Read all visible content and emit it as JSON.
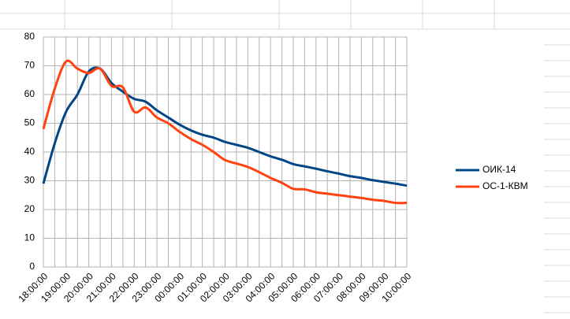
{
  "chart_data": {
    "type": "line",
    "categories": [
      "18:00:00",
      null,
      "19:00:00",
      null,
      "20:00:00",
      null,
      "21:00:00",
      null,
      "22:00:00",
      null,
      "23:00:00",
      null,
      "00:00:00",
      null,
      "01:00:00",
      null,
      "02:00:00",
      null,
      "03:00:00",
      null,
      "04:00:00",
      null,
      "05:00:00",
      null,
      "06:00:00",
      null,
      "07:00:00",
      null,
      "08:00:00",
      null,
      "09:00:00",
      null,
      "10:00:00"
    ],
    "series": [
      {
        "name": "ОИК-14",
        "color": "#004586",
        "values": [
          29,
          43,
          54,
          60,
          68,
          69,
          64,
          61,
          58.5,
          57.5,
          54.5,
          52,
          49.5,
          47.5,
          46,
          45,
          43.5,
          42.5,
          41.5,
          40,
          38.5,
          37.3,
          35.8,
          35,
          34.2,
          33.3,
          32.5,
          31.6,
          31,
          30.2,
          29.6,
          29,
          28.3
        ]
      },
      {
        "name": "ОС-1-КВМ",
        "color": "#ff420e",
        "values": [
          48,
          62,
          71.5,
          69,
          67.5,
          69,
          63,
          62.5,
          54,
          55.5,
          52,
          50,
          47,
          44.5,
          42.5,
          40,
          37.2,
          36,
          34.8,
          33,
          31,
          29.3,
          27.2,
          27,
          26,
          25.5,
          25,
          24.5,
          24,
          23.4,
          23,
          22.3,
          22.3
        ]
      }
    ],
    "ylim": [
      0,
      80
    ],
    "yticks": [
      0,
      10,
      20,
      30,
      40,
      50,
      60,
      70,
      80
    ],
    "grid": true,
    "smooth": true,
    "legend": "right"
  }
}
